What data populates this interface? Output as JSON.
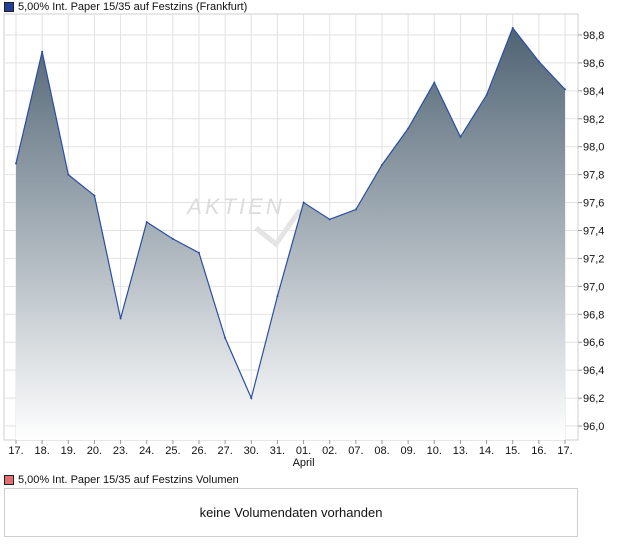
{
  "chart_data": {
    "type": "area",
    "title": "5,00% Int. Paper 15/35 auf Festzins (Frankfurt)",
    "series_color": "#2a4fa0",
    "categories": [
      "17.",
      "18.",
      "19.",
      "20.",
      "23.",
      "24.",
      "25.",
      "26.",
      "27.",
      "30.",
      "31.",
      "01.",
      "02.",
      "07.",
      "08.",
      "09.",
      "10.",
      "13.",
      "14.",
      "15.",
      "16.",
      "17."
    ],
    "month_label": "April",
    "values": [
      97.88,
      98.68,
      97.8,
      97.65,
      96.77,
      97.46,
      97.34,
      97.24,
      96.63,
      96.2,
      96.93,
      97.6,
      97.48,
      97.55,
      97.87,
      98.13,
      98.46,
      98.07,
      98.37,
      98.85,
      98.61,
      98.41
    ],
    "ylim": [
      95.9,
      98.95
    ],
    "y_ticks": [
      "96,0",
      "96,2",
      "96,4",
      "96,6",
      "96,8",
      "97,0",
      "97,2",
      "97,4",
      "97,6",
      "97,8",
      "98,0",
      "98,2",
      "98,4",
      "98,6",
      "98,8"
    ],
    "y_tick_values": [
      96.0,
      96.2,
      96.4,
      96.6,
      96.8,
      97.0,
      97.2,
      97.4,
      97.6,
      97.8,
      98.0,
      98.2,
      98.4,
      98.6,
      98.8
    ],
    "grid": true,
    "watermark": "AKTIEN"
  },
  "volume": {
    "legend": "5,00% Int. Paper 15/35 auf Festzins Volumen",
    "legend_color": "#e07070",
    "message": "keine Volumendaten vorhanden"
  },
  "colors": {
    "main_swatch": "#1f3f99",
    "area_top": "#4f6373",
    "area_bottom": "#ffffff",
    "grid": "#e2e2e2"
  }
}
